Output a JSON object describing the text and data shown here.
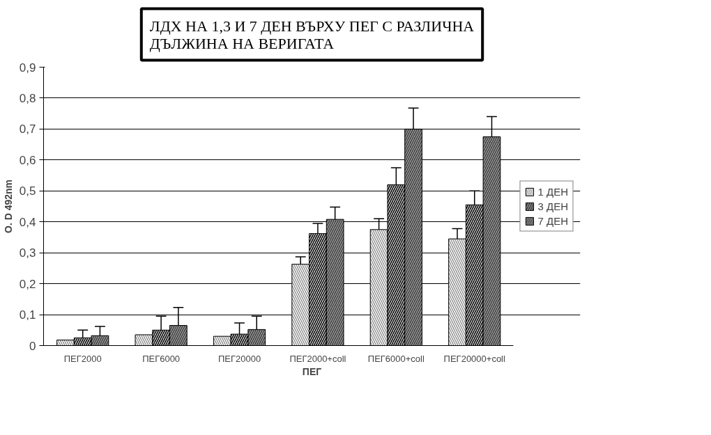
{
  "chart_data": {
    "type": "bar",
    "title": "ЛДХ НА 1,3 И 7 ДЕН ВЪРХУ ПЕГ С РАЗЛИЧНА\nДЪЛЖИНА НА ВЕРИГАТА",
    "xlabel": "ПЕГ",
    "ylabel": "O. D 492nm",
    "categories": [
      "ПЕГ2000",
      "ПЕГ6000",
      "ПЕГ20000",
      "ПЕГ2000+coll",
      "ПЕГ6000+coll",
      "ПЕГ20000+coll"
    ],
    "series": [
      {
        "name": "1 ДЕН",
        "color": "#808080",
        "values": [
          0.018,
          0.035,
          0.03,
          0.263,
          0.375,
          0.345
        ],
        "errors": [
          null,
          null,
          null,
          [
            0.263,
            0.287
          ],
          [
            0.375,
            0.41
          ],
          [
            0.345,
            0.378
          ]
        ]
      },
      {
        "name": "3 ДЕН",
        "color": "#d9d9d9",
        "values": [
          0.025,
          0.05,
          0.037,
          0.362,
          0.52,
          0.455
        ],
        "errors": [
          [
            0.025,
            0.05
          ],
          [
            0.05,
            0.095
          ],
          [
            0.037,
            0.073
          ],
          [
            0.362,
            0.395
          ],
          [
            0.52,
            0.575
          ],
          [
            0.455,
            0.5
          ]
        ]
      },
      {
        "name": "7 ДЕН",
        "color": "#333333",
        "values": [
          0.032,
          0.065,
          0.052,
          0.408,
          0.7,
          0.675
        ],
        "errors": [
          [
            0.032,
            0.062
          ],
          [
            0.065,
            0.123
          ],
          [
            0.052,
            0.095
          ],
          [
            0.408,
            0.448
          ],
          [
            0.7,
            0.768
          ],
          [
            0.675,
            0.74
          ]
        ]
      }
    ],
    "ylim": [
      0,
      0.9
    ],
    "yticks": [
      {
        "value": 0,
        "label": "0"
      },
      {
        "value": 0.1,
        "label": "0,1"
      },
      {
        "value": 0.2,
        "label": "0,2"
      },
      {
        "value": 0.3,
        "label": "0,3"
      },
      {
        "value": 0.4,
        "label": "0,4"
      },
      {
        "value": 0.5,
        "label": "0,5"
      },
      {
        "value": 0.6,
        "label": "0,6"
      },
      {
        "value": 0.7,
        "label": "0,7"
      },
      {
        "value": 0.8,
        "label": "0,8"
      },
      {
        "value": 0.9,
        "label": "0,9"
      }
    ],
    "grid": "y",
    "legend": "right"
  }
}
